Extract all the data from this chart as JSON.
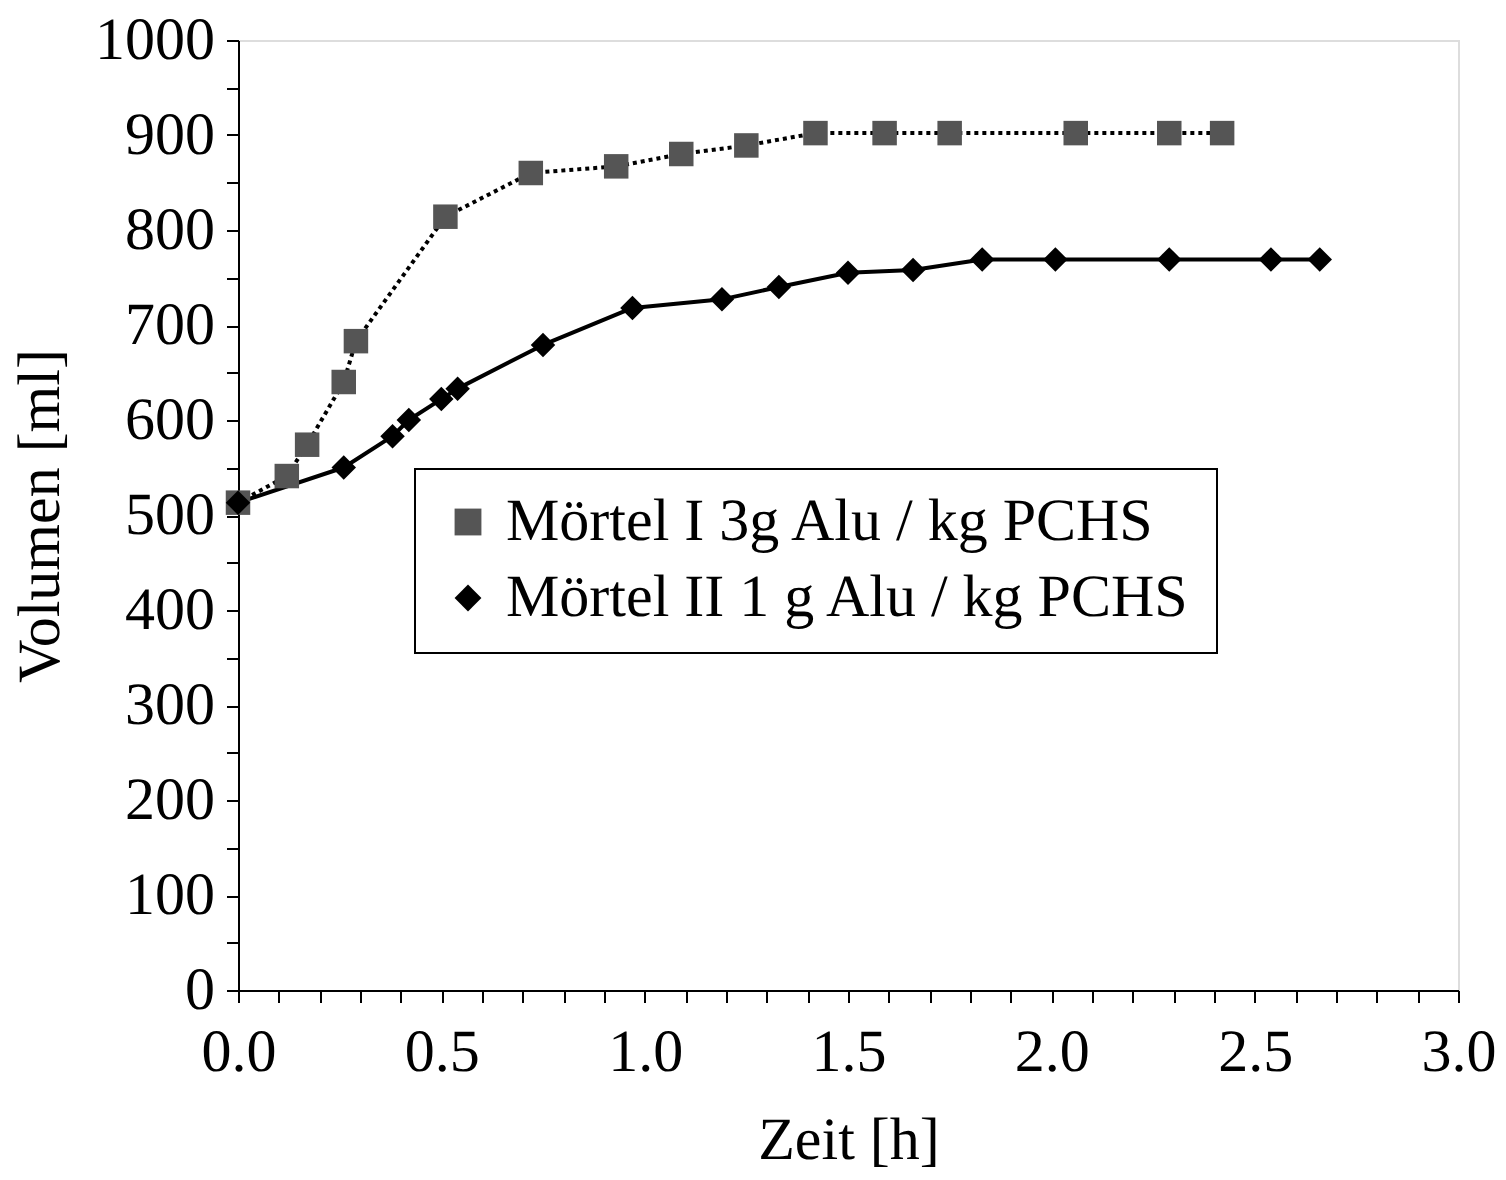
{
  "chart_data": {
    "type": "line",
    "xlabel": "Zeit [h]",
    "ylabel": "Volumen [ml]",
    "xlim": [
      0,
      3
    ],
    "ylim": [
      0,
      1000
    ],
    "xticks": [
      {
        "value": 0,
        "label": "0.0"
      },
      {
        "value": 0.1,
        "label": null
      },
      {
        "value": 0.2,
        "label": null
      },
      {
        "value": 0.3,
        "label": null
      },
      {
        "value": 0.4,
        "label": null
      },
      {
        "value": 0.5,
        "label": "0.5"
      },
      {
        "value": 0.6,
        "label": null
      },
      {
        "value": 0.7,
        "label": null
      },
      {
        "value": 0.8,
        "label": null
      },
      {
        "value": 0.9,
        "label": null
      },
      {
        "value": 1,
        "label": "1.0"
      },
      {
        "value": 1.1,
        "label": null
      },
      {
        "value": 1.2,
        "label": null
      },
      {
        "value": 1.3,
        "label": null
      },
      {
        "value": 1.4,
        "label": null
      },
      {
        "value": 1.5,
        "label": "1.5"
      },
      {
        "value": 1.6,
        "label": null
      },
      {
        "value": 1.7,
        "label": null
      },
      {
        "value": 1.8,
        "label": null
      },
      {
        "value": 1.9,
        "label": null
      },
      {
        "value": 2,
        "label": "2.0"
      },
      {
        "value": 2.1,
        "label": null
      },
      {
        "value": 2.2,
        "label": null
      },
      {
        "value": 2.3,
        "label": null
      },
      {
        "value": 2.4,
        "label": null
      },
      {
        "value": 2.5,
        "label": "2.5"
      },
      {
        "value": 2.6,
        "label": null
      },
      {
        "value": 2.7,
        "label": null
      },
      {
        "value": 2.8,
        "label": null
      },
      {
        "value": 2.9,
        "label": null
      },
      {
        "value": 3,
        "label": "3.0"
      }
    ],
    "yticks": [
      0,
      {
        "value": 50,
        "label": null
      },
      100,
      {
        "value": 150,
        "label": null
      },
      200,
      {
        "value": 250,
        "label": null
      },
      300,
      {
        "value": 350,
        "label": null
      },
      400,
      {
        "value": 450,
        "label": null
      },
      500,
      {
        "value": 550,
        "label": null
      },
      600,
      {
        "value": 650,
        "label": null
      },
      700,
      {
        "value": 750,
        "label": null
      },
      800,
      {
        "value": 850,
        "label": null
      },
      900,
      {
        "value": 950,
        "label": null
      },
      1000
    ],
    "grid": false,
    "legend": "bottom right",
    "series": [
      {
        "name": "Mörtel I 3g Alu / kg PCHS",
        "color": "#555555",
        "marker": "square",
        "line_style": "dotted",
        "x": [
          0,
          0.12,
          0.17,
          0.26,
          0.29,
          0.51,
          0.72,
          0.93,
          1.09,
          1.25,
          1.42,
          1.59,
          1.75,
          2.06,
          2.29,
          2.42
        ],
        "values": [
          513,
          541,
          574,
          640,
          683,
          814,
          860,
          867,
          880,
          889,
          902,
          902,
          902,
          902,
          902,
          902
        ]
      },
      {
        "name": "Mörtel II 1 g Alu / kg PCHS",
        "color": "#000000",
        "marker": "diamond",
        "line_style": "solid",
        "x": [
          0,
          0.26,
          0.38,
          0.42,
          0.5,
          0.54,
          0.75,
          0.97,
          1.19,
          1.33,
          1.5,
          1.66,
          1.83,
          2.01,
          2.29,
          2.54,
          2.66
        ],
        "values": [
          513,
          550,
          583,
          600,
          622,
          633,
          679,
          718,
          727,
          740,
          755,
          758,
          769,
          769,
          769,
          769,
          769
        ]
      }
    ]
  }
}
